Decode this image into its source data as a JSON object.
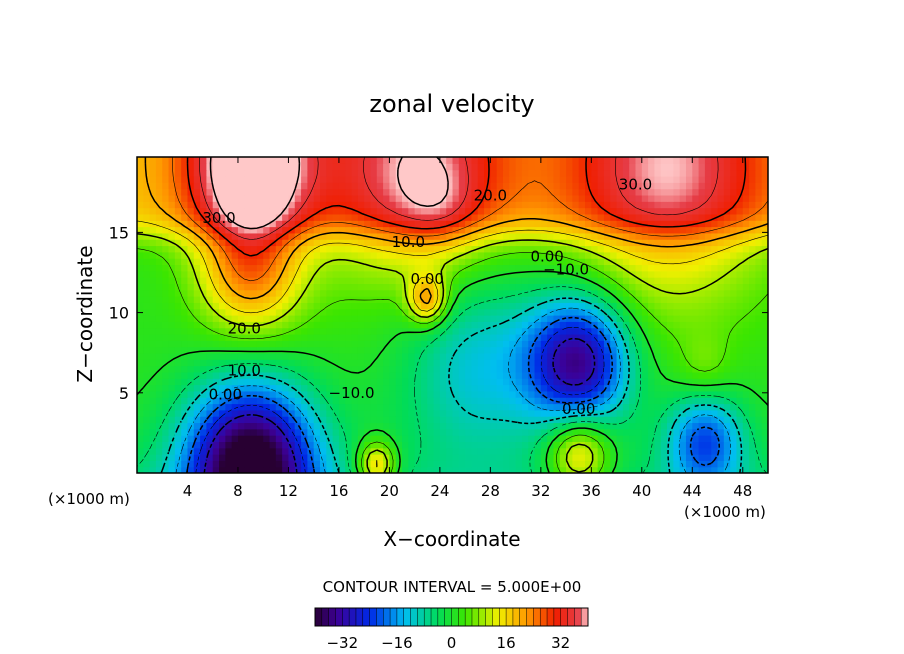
{
  "chart_data": {
    "type": "heatmap",
    "title": "zonal velocity",
    "xlabel": "X−coordinate",
    "ylabel": "Z−coordinate",
    "x_unit_left": "(×1000 m)",
    "x_unit_right": "(×1000 m)",
    "xlim": [
      0,
      50
    ],
    "ylim": [
      0,
      19.7
    ],
    "x_ticks": [
      4,
      8,
      12,
      16,
      20,
      24,
      28,
      32,
      36,
      40,
      44,
      48
    ],
    "y_ticks": [
      5,
      10,
      15
    ],
    "contour_interval_label": "CONTOUR INTERVAL = 5.000E+00",
    "colorbar": {
      "min": -40,
      "max": 40,
      "ticks": [
        -32,
        -16,
        0,
        16,
        32
      ],
      "tick_labels": [
        "−32",
        "−16",
        "0",
        "16",
        "32"
      ]
    },
    "contour_labels": [
      {
        "text": "30.0",
        "x": 39.5,
        "z": 18.0
      },
      {
        "text": "20.0",
        "x": 28.0,
        "z": 17.3
      },
      {
        "text": "30.0",
        "x": 6.5,
        "z": 15.9
      },
      {
        "text": "10.0",
        "x": 21.5,
        "z": 14.4
      },
      {
        "text": "0.00",
        "x": 32.5,
        "z": 13.5
      },
      {
        "text": "−10.0",
        "x": 34.0,
        "z": 12.7
      },
      {
        "text": "0.00",
        "x": 23.0,
        "z": 12.1
      },
      {
        "text": "20.0",
        "x": 8.5,
        "z": 9.0
      },
      {
        "text": "10.0",
        "x": 8.5,
        "z": 6.4
      },
      {
        "text": "0.00",
        "x": 7.0,
        "z": 4.9
      },
      {
        "text": "−10.0",
        "x": 17.0,
        "z": 5.0
      },
      {
        "text": "0.00",
        "x": 35.0,
        "z": 4.0
      }
    ],
    "field_centers": [
      {
        "x": 9,
        "z": 19.5,
        "value": 42,
        "r": 5
      },
      {
        "x": 22,
        "z": 19,
        "value": 32,
        "r": 7
      },
      {
        "x": 42,
        "z": 19,
        "value": 32,
        "r": 8
      },
      {
        "x": 9,
        "z": 12.5,
        "value": 30,
        "r": 4
      },
      {
        "x": 23,
        "z": 10.8,
        "value": 30,
        "r": 1.5
      },
      {
        "x": 24,
        "z": 16.5,
        "value": 15,
        "r": 3
      },
      {
        "x": 35,
        "z": 7,
        "value": -25,
        "r": 4
      },
      {
        "x": 35,
        "z": 1.2,
        "value": 30,
        "r": 2.5
      },
      {
        "x": 19,
        "z": 0.5,
        "value": 30,
        "r": 1.5
      },
      {
        "x": 9,
        "z": 0.5,
        "value": -35,
        "r": 5
      },
      {
        "x": 45,
        "z": 6.5,
        "value": 15,
        "r": 2
      },
      {
        "x": 45,
        "z": 2,
        "value": -12,
        "r": 3
      },
      {
        "x": 27,
        "z": 7,
        "value": -4,
        "r": 6
      }
    ]
  }
}
